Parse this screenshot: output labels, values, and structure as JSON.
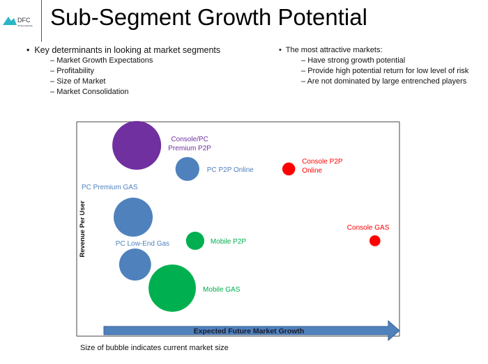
{
  "logo": {
    "brand": "DFC",
    "sub": "INTELLIGENCE"
  },
  "title": "Sub-Segment Growth Potential",
  "left_bullets": {
    "heading": "Key determinants in looking at market segments",
    "items": [
      "Market Growth Expectations",
      "Profitability",
      "Size of Market",
      "Market Consolidation"
    ]
  },
  "right_bullets": {
    "heading": "The most attractive markets:",
    "items": [
      "Have strong growth potential",
      "Provide high potential return for low level of risk",
      "Are not dominated by large entrenched players"
    ]
  },
  "note": "Size of bubble indicates current market size",
  "chart_data": {
    "type": "bubble",
    "xlabel": "Expected Future Market Growth",
    "ylabel": "Revenue Per User",
    "xlim": [
      0,
      100
    ],
    "ylim": [
      0,
      100
    ],
    "grid": false,
    "colors": {
      "purple": "#7030A0",
      "blue": "#4F81BD",
      "red": "#FF0000",
      "green": "#00B050"
    },
    "points": [
      {
        "label": "Console/PC Premium P2P",
        "lines": [
          "Console/PC",
          "Premium P2P"
        ],
        "x": 18.6,
        "y": 89,
        "size": 100,
        "color": "#7030A0"
      },
      {
        "label": "PC P2P Online",
        "lines": [
          "PC P2P Online"
        ],
        "x": 34.3,
        "y": 78,
        "size": 24,
        "color": "#4F81BD"
      },
      {
        "label": "Console P2P Online",
        "lines": [
          "Console P2P",
          "Online"
        ],
        "x": 65.7,
        "y": 78,
        "size": 7,
        "color": "#FF0000"
      },
      {
        "label": "PC Premium GAS",
        "lines": [
          "PC Premium GAS"
        ],
        "x": 17.5,
        "y": 55.5,
        "size": 64,
        "color": "#4F81BD"
      },
      {
        "label": "Mobile P2P",
        "lines": [
          "Mobile P2P"
        ],
        "x": 36.7,
        "y": 44.5,
        "size": 14,
        "color": "#00B050"
      },
      {
        "label": "Console GAS",
        "lines": [
          "Console GAS"
        ],
        "x": 92.4,
        "y": 44.5,
        "size": 5,
        "color": "#FF0000"
      },
      {
        "label": "PC Low-End Gas",
        "lines": [
          "PC Low-End Gas"
        ],
        "x": 18.1,
        "y": 33.4,
        "size": 43,
        "color": "#4F81BD"
      },
      {
        "label": "Mobile GAS",
        "lines": [
          "Mobile GAS"
        ],
        "x": 29.6,
        "y": 22.4,
        "size": 94,
        "color": "#00B050"
      }
    ]
  }
}
